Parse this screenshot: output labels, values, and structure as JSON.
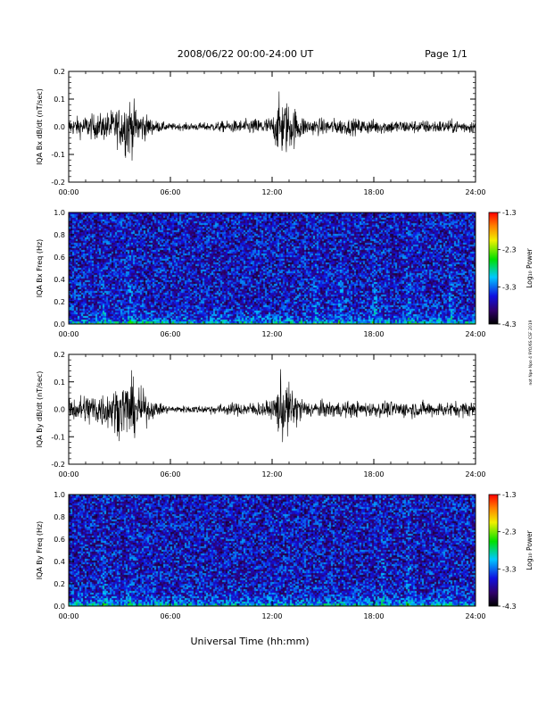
{
  "header": {
    "title": "2008/06/22  00:00-24:00 UT",
    "page": "Page 1/1"
  },
  "side_note": "not Npe Npo 4 9YO/6S CSF 2019",
  "chart_data": [
    {
      "type": "line",
      "id": "bx_dbdt",
      "ylabel": "IQA Bx dB/dt (nT/sec)",
      "ylim": [
        -0.2,
        0.2
      ],
      "yticks": [
        "-0.2",
        "-0.1",
        "0.0",
        "0.1",
        "0.2"
      ],
      "xlim_hours": [
        0,
        24
      ],
      "xticks": [
        "00:00",
        "06:00",
        "12:00",
        "18:00",
        "24:00"
      ],
      "envelope_hours": [
        0,
        1,
        2,
        3,
        3.5,
        4,
        5,
        6,
        8,
        10,
        12,
        12.5,
        14,
        16,
        18,
        20,
        22,
        24
      ],
      "envelope_amplitude": [
        0.05,
        0.07,
        0.08,
        0.12,
        0.2,
        0.12,
        0.04,
        0.02,
        0.025,
        0.04,
        0.06,
        0.2,
        0.05,
        0.05,
        0.045,
        0.04,
        0.04,
        0.04
      ],
      "color": "#000000"
    },
    {
      "type": "heatmap",
      "id": "bx_spec",
      "ylabel": "IQA Bx Freq (Hz)",
      "ylim": [
        0,
        1.0
      ],
      "yticks": [
        "0.0",
        "0.2",
        "0.4",
        "0.6",
        "0.8",
        "1.0"
      ],
      "xlim_hours": [
        0,
        24
      ],
      "xticks": [
        "00:00",
        "06:00",
        "12:00",
        "18:00",
        "24:00"
      ],
      "colorbar": {
        "label": "Log₁₀ Power",
        "ticks": [
          "-1.3",
          "-2.3",
          "-3.3",
          "-4.3"
        ],
        "range": [
          -4.3,
          -1.3
        ]
      },
      "burst_hours": [
        2.0,
        3.6,
        14.5,
        16.0,
        18.0,
        20.0,
        22.5
      ]
    },
    {
      "type": "line",
      "id": "by_dbdt",
      "ylabel": "IQA By dB/dt (nT/sec)",
      "ylim": [
        -0.2,
        0.2
      ],
      "yticks": [
        "-0.2",
        "-0.1",
        "0.0",
        "0.1",
        "0.2"
      ],
      "xlim_hours": [
        0,
        24
      ],
      "xticks": [
        "00:00",
        "06:00",
        "12:00",
        "18:00",
        "24:00"
      ],
      "envelope_hours": [
        0,
        1,
        2,
        2.5,
        3,
        3.5,
        4,
        5,
        6,
        8,
        10,
        12,
        12.5,
        14,
        16,
        18,
        20,
        22,
        24
      ],
      "envelope_amplitude": [
        0.06,
        0.1,
        0.11,
        0.12,
        0.15,
        0.2,
        0.15,
        0.05,
        0.02,
        0.025,
        0.04,
        0.05,
        0.2,
        0.05,
        0.05,
        0.045,
        0.05,
        0.045,
        0.05
      ],
      "color": "#000000"
    },
    {
      "type": "heatmap",
      "id": "by_spec",
      "ylabel": "IQA By Freq (Hz)",
      "ylim": [
        0,
        1.0
      ],
      "yticks": [
        "0.0",
        "0.2",
        "0.4",
        "0.6",
        "0.8",
        "1.0"
      ],
      "xlim_hours": [
        0,
        24
      ],
      "xticks": [
        "00:00",
        "06:00",
        "12:00",
        "18:00",
        "24:00"
      ],
      "colorbar": {
        "label": "Log₁₀ Power",
        "ticks": [
          "-1.3",
          "-2.3",
          "-3.3",
          "-4.3"
        ],
        "range": [
          -4.3,
          -1.3
        ]
      },
      "burst_hours": [
        2.0,
        3.6,
        18.5,
        20.0
      ]
    }
  ],
  "footer": {
    "xlabel": "Universal Time (hh:mm)"
  }
}
